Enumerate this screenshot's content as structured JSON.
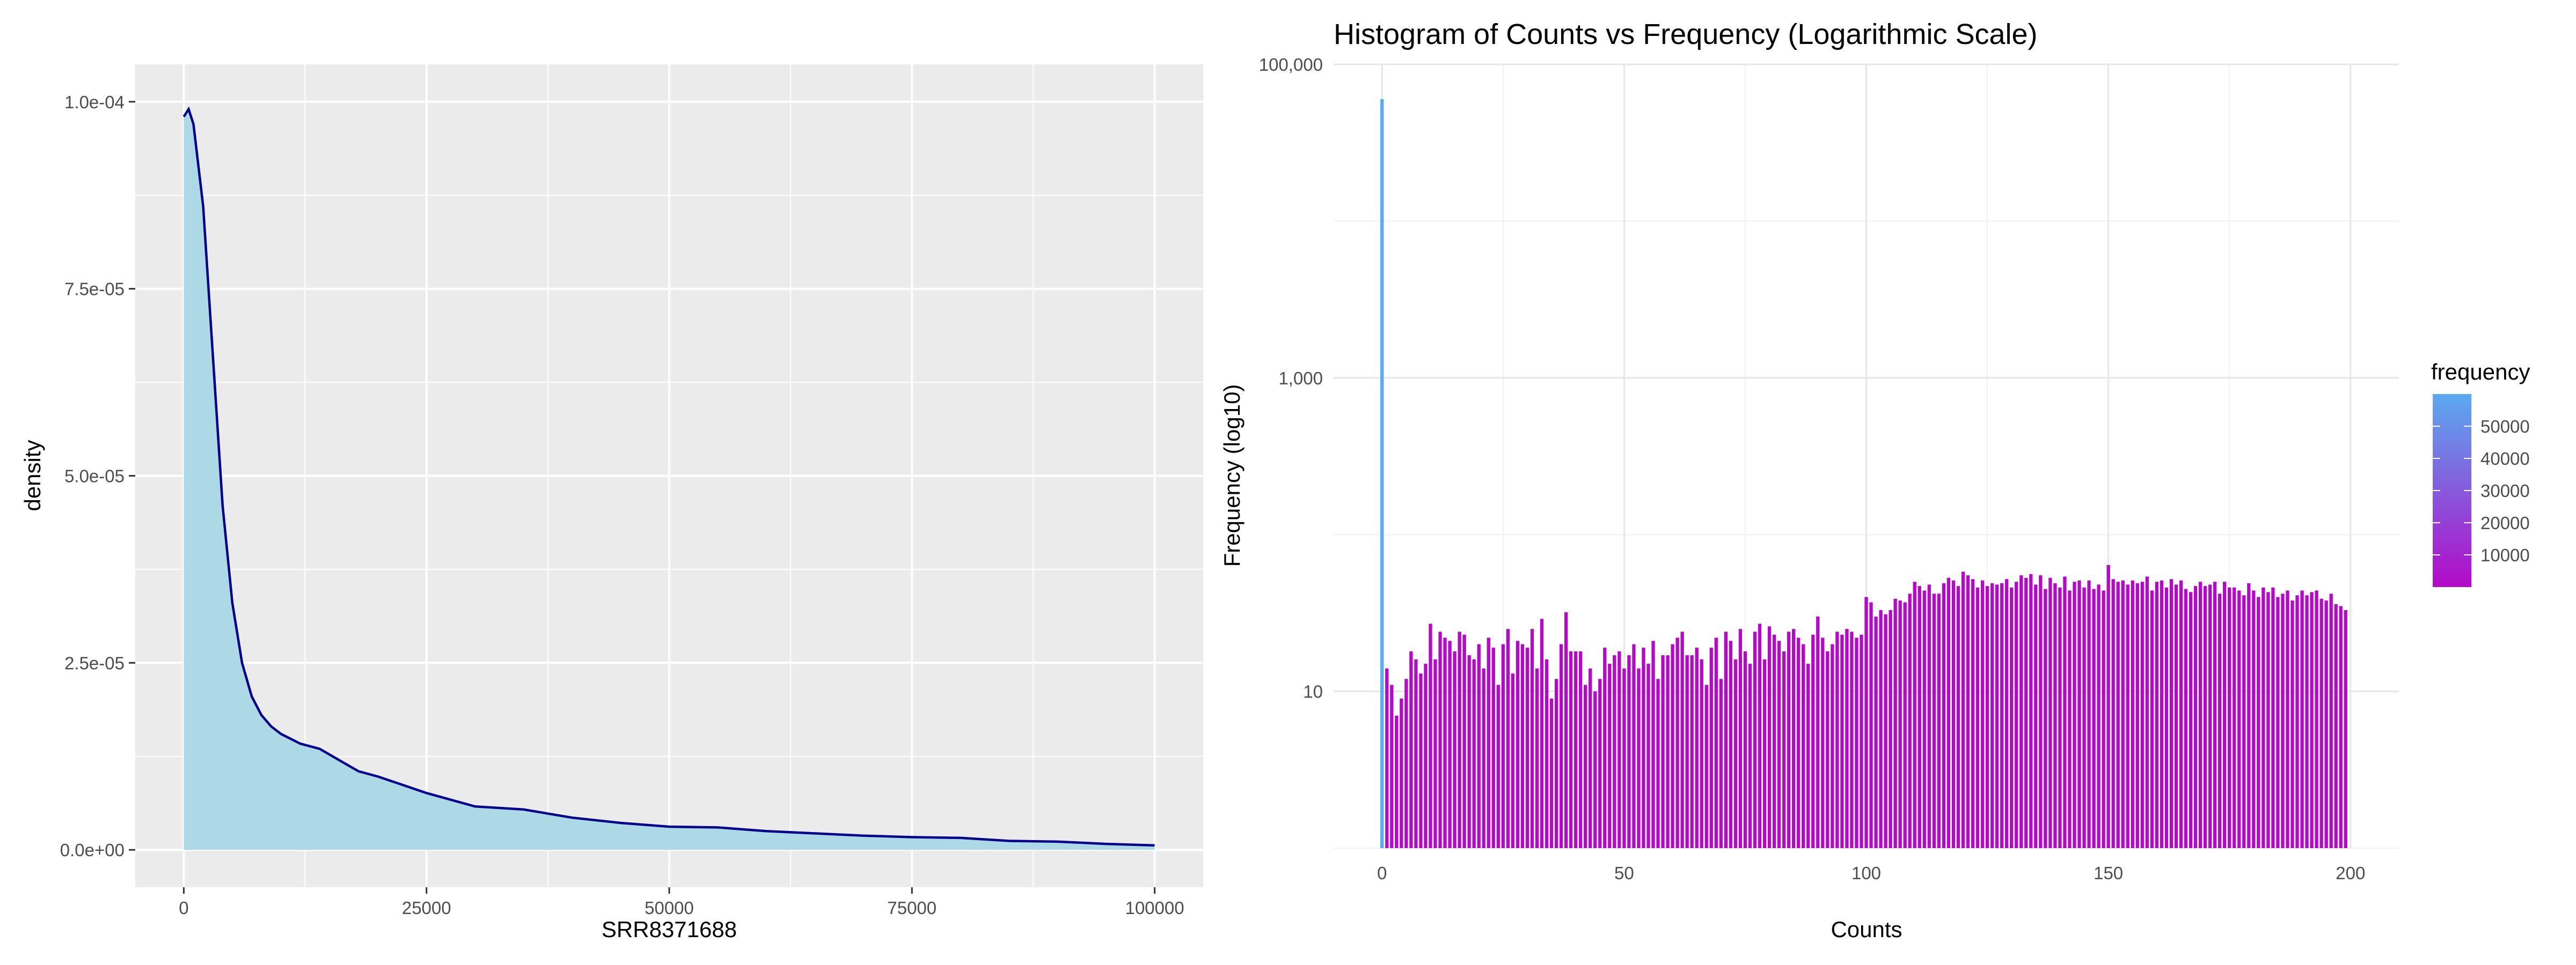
{
  "chart_data": [
    {
      "type": "area",
      "title": "",
      "xlabel": "SRR8371688",
      "ylabel": "density",
      "xlim": [
        -5000,
        105000
      ],
      "ylim": [
        -5e-06,
        0.000105
      ],
      "x_ticks": [
        0,
        25000,
        50000,
        75000,
        100000
      ],
      "x_tick_labels": [
        "0",
        "25000",
        "50000",
        "75000",
        "100000"
      ],
      "y_ticks": [
        0,
        2.5e-05,
        5e-05,
        7.5e-05,
        0.0001
      ],
      "y_tick_labels": [
        "0.0e+00",
        "2.5e-05",
        "5.0e-05",
        "7.5e-05",
        "1.0e-04"
      ],
      "grid": true,
      "fill_color": "#add8e6",
      "line_color": "#00008b",
      "panel_color": "#ebebeb",
      "x": [
        0,
        500,
        1000,
        2000,
        3000,
        4000,
        5000,
        6000,
        7000,
        8000,
        9000,
        10000,
        12000,
        14000,
        16000,
        18000,
        20000,
        25000,
        30000,
        35000,
        40000,
        45000,
        50000,
        55000,
        60000,
        65000,
        70000,
        75000,
        80000,
        85000,
        90000,
        95000,
        100000
      ],
      "y": [
        9.8e-05,
        9.9e-05,
        9.7e-05,
        8.6e-05,
        6.6e-05,
        4.6e-05,
        3.3e-05,
        2.5e-05,
        2.05e-05,
        1.8e-05,
        1.65e-05,
        1.55e-05,
        1.42e-05,
        1.35e-05,
        1.2e-05,
        1.05e-05,
        9.8e-06,
        7.6e-06,
        5.8e-06,
        5.4e-06,
        4.3e-06,
        3.6e-06,
        3.1e-06,
        3e-06,
        2.5e-06,
        2.2e-06,
        1.9e-06,
        1.7e-06,
        1.6e-06,
        1.2e-06,
        1.1e-06,
        8e-07,
        6e-07
      ]
    },
    {
      "type": "bar",
      "title": "Histogram of Counts vs Frequency (Logarithmic Scale)",
      "xlabel": "Counts",
      "ylabel": "Frequency (log10)",
      "log_y": true,
      "xlim": [
        -10,
        210
      ],
      "ylim": [
        1,
        100000
      ],
      "x_ticks": [
        0,
        50,
        100,
        150,
        200
      ],
      "x_tick_labels": [
        "0",
        "50",
        "100",
        "150",
        "200"
      ],
      "y_ticks": [
        10,
        1000,
        100000
      ],
      "y_tick_labels": [
        "10",
        "1,000",
        "100,000"
      ],
      "grid": true,
      "color_low": "#b40ac8",
      "color_high": "#5aaaf0",
      "legend": {
        "title": "frequency",
        "position": "right",
        "labels": [
          "50000",
          "40000",
          "30000",
          "20000",
          "10000"
        ],
        "values": [
          50000,
          40000,
          30000,
          20000,
          10000
        ],
        "min": 1,
        "max": 60000
      },
      "x": [
        0,
        1,
        2,
        3,
        4,
        5,
        6,
        7,
        8,
        9,
        10,
        11,
        12,
        13,
        14,
        15,
        16,
        17,
        18,
        19,
        20,
        21,
        22,
        23,
        24,
        25,
        26,
        27,
        28,
        29,
        30,
        31,
        32,
        33,
        34,
        35,
        36,
        37,
        38,
        39,
        40,
        41,
        42,
        43,
        44,
        45,
        46,
        47,
        48,
        49,
        50,
        51,
        52,
        53,
        54,
        55,
        56,
        57,
        58,
        59,
        60,
        61,
        62,
        63,
        64,
        65,
        66,
        67,
        68,
        69,
        70,
        71,
        72,
        73,
        74,
        75,
        76,
        77,
        78,
        79,
        80,
        81,
        82,
        83,
        84,
        85,
        86,
        87,
        88,
        89,
        90,
        91,
        92,
        93,
        94,
        95,
        96,
        97,
        98,
        99,
        100,
        101,
        102,
        103,
        104,
        105,
        106,
        107,
        108,
        109,
        110,
        111,
        112,
        113,
        114,
        115,
        116,
        117,
        118,
        119,
        120,
        121,
        122,
        123,
        124,
        125,
        126,
        127,
        128,
        129,
        130,
        131,
        132,
        133,
        134,
        135,
        136,
        137,
        138,
        139,
        140,
        141,
        142,
        143,
        144,
        145,
        146,
        147,
        148,
        149,
        150,
        151,
        152,
        153,
        154,
        155,
        156,
        157,
        158,
        159,
        160,
        161,
        162,
        163,
        164,
        165,
        166,
        167,
        168,
        169,
        170,
        171,
        172,
        173,
        174,
        175,
        176,
        177,
        178,
        179,
        180,
        181,
        182,
        183,
        184,
        185,
        186,
        187,
        188,
        189,
        190,
        191,
        192,
        193,
        194,
        195,
        196,
        197,
        198,
        199
      ],
      "values": [
        60000,
        14,
        11,
        7,
        9,
        12,
        18,
        16,
        13,
        15,
        27,
        16,
        24,
        22,
        21,
        18,
        24,
        23,
        17,
        16,
        20,
        14,
        22,
        19,
        11,
        20,
        25,
        13,
        21,
        20,
        19,
        25,
        14,
        29,
        16,
        9,
        12,
        20,
        32,
        18,
        18,
        18,
        11,
        14,
        10,
        12,
        19,
        15,
        17,
        18,
        14,
        17,
        20,
        14,
        19,
        15,
        21,
        12,
        17,
        17,
        20,
        22,
        24,
        17,
        17,
        19,
        16,
        11,
        19,
        22,
        12,
        24,
        21,
        16,
        25,
        18,
        15,
        24,
        27,
        16,
        26,
        23,
        21,
        18,
        24,
        25,
        22,
        20,
        15,
        23,
        30,
        22,
        18,
        20,
        24,
        23,
        25,
        24,
        22,
        23,
        40,
        37,
        30,
        33,
        31,
        33,
        39,
        38,
        37,
        42,
        50,
        47,
        44,
        48,
        42,
        42,
        49,
        53,
        51,
        47,
        58,
        55,
        52,
        46,
        51,
        47,
        49,
        48,
        49,
        52,
        46,
        50,
        55,
        53,
        56,
        48,
        55,
        45,
        53,
        49,
        46,
        54,
        44,
        50,
        51,
        46,
        51,
        45,
        48,
        44,
        64,
        52,
        50,
        51,
        48,
        51,
        49,
        50,
        54,
        44,
        50,
        51,
        46,
        52,
        48,
        51,
        45,
        43,
        47,
        50,
        47,
        48,
        50,
        42,
        50,
        46,
        46,
        44,
        41,
        49,
        44,
        40,
        46,
        43,
        46,
        40,
        42,
        44,
        38,
        41,
        44,
        41,
        43,
        44,
        39,
        38,
        42,
        36,
        35,
        33
      ]
    }
  ]
}
